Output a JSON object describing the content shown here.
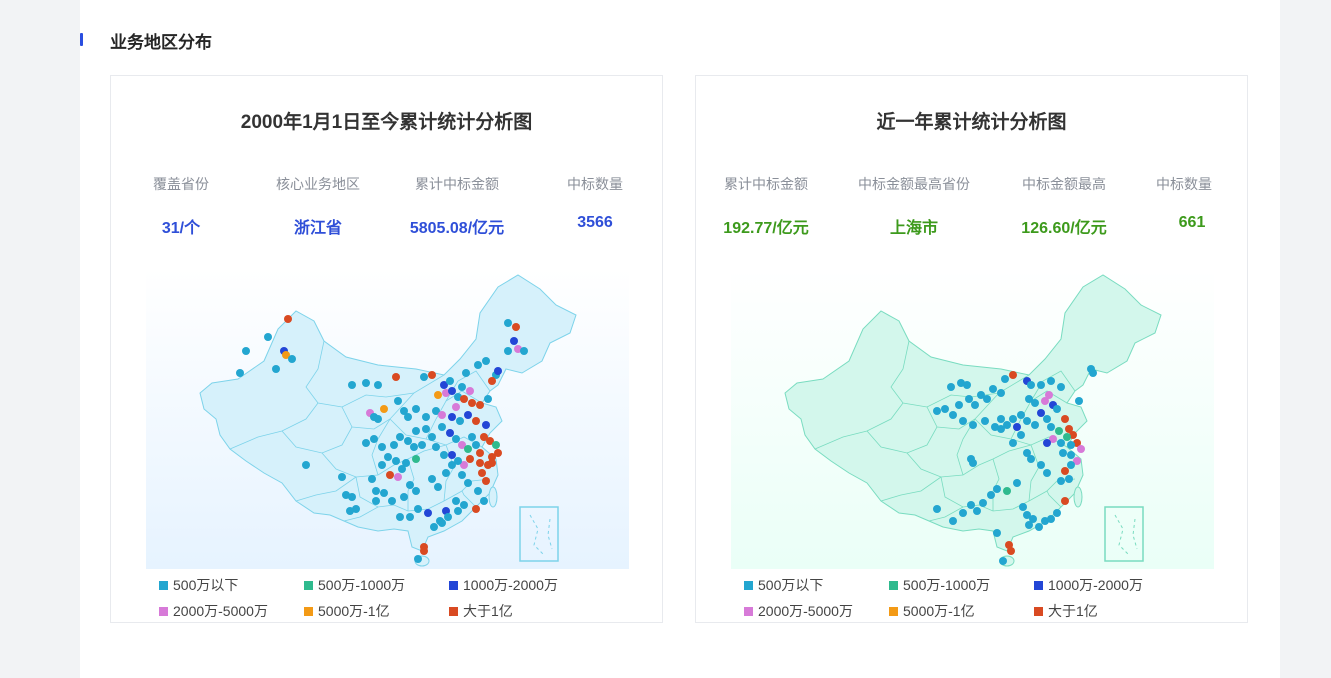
{
  "section": {
    "title": "业务地区分布"
  },
  "cards": [
    {
      "title": "2000年1月1日至今累计统计分析图",
      "value_color": "#2f4fd8",
      "stats": [
        {
          "label": "覆盖省份",
          "value": "31/个"
        },
        {
          "label": "核心业务地区",
          "value": "浙江省"
        },
        {
          "label": "累计中标金额",
          "value": "5805.08/亿元"
        },
        {
          "label": "中标数量",
          "value": "3566"
        }
      ]
    },
    {
      "title": "近一年累计统计分析图",
      "value_color": "#3d9a1c",
      "stats": [
        {
          "label": "累计中标金额",
          "value": "192.77/亿元"
        },
        {
          "label": "中标金额最高省份",
          "value": "上海市"
        },
        {
          "label": "中标金额最高",
          "value": "126.60/亿元"
        },
        {
          "label": "中标数量",
          "value": "661"
        }
      ]
    }
  ],
  "legend": [
    {
      "label": "500万以下",
      "color": "#23a6d0"
    },
    {
      "label": "500万-1000万",
      "color": "#2fba8e"
    },
    {
      "label": "1000万-2000万",
      "color": "#2346d6"
    },
    {
      "label": "2000万-5000万",
      "color": "#d77ad8"
    },
    {
      "label": "5000万-1亿",
      "color": "#f39a16"
    },
    {
      "label": "大于1亿",
      "color": "#d94a22"
    }
  ],
  "maps": [
    {
      "fill": "#d6f1fb",
      "stroke": "#7dd3ea",
      "bg_top": "#ffffff",
      "bg_bottom": "#e6f3ff"
    },
    {
      "fill": "#d3f7ec",
      "stroke": "#79dcc0",
      "bg_top": "#ffffff",
      "bg_bottom": "#eafff7"
    }
  ]
}
